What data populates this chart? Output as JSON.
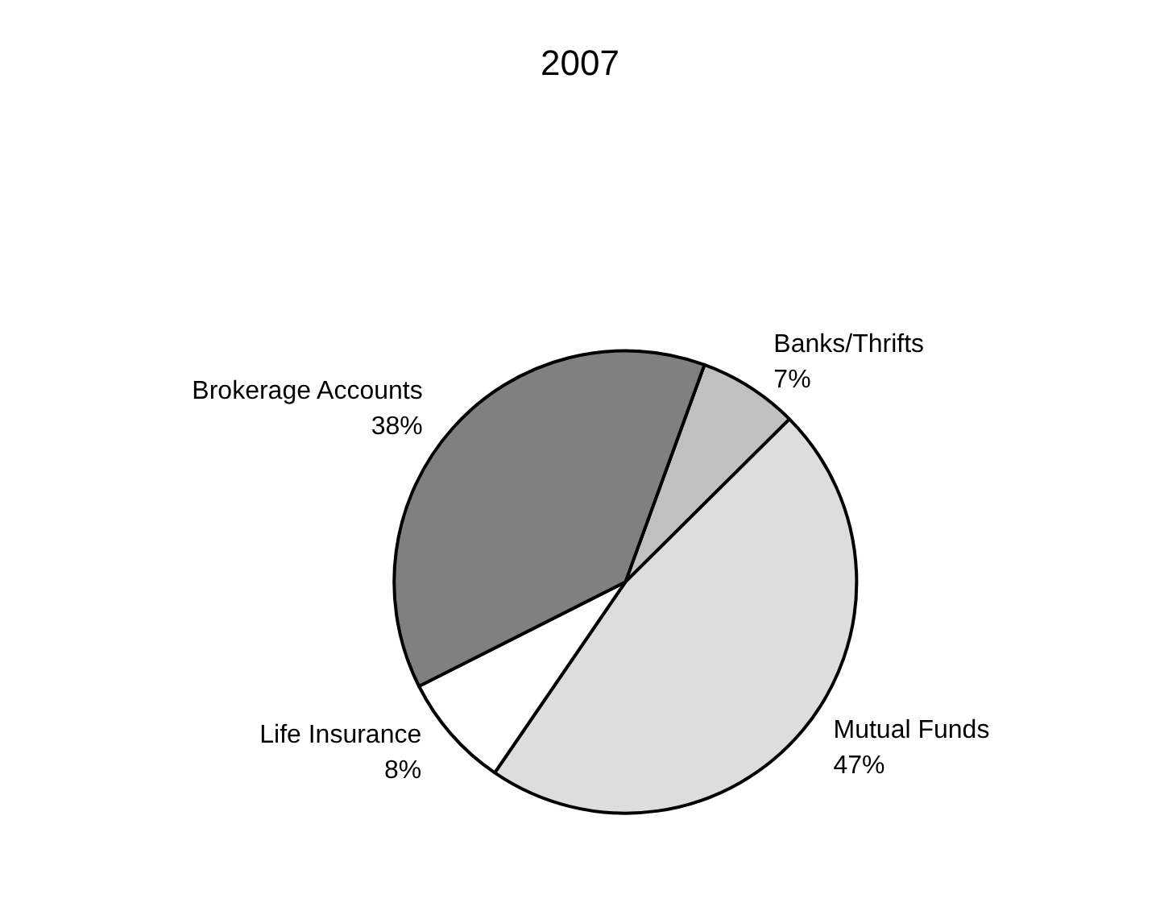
{
  "chart_data": {
    "type": "pie",
    "title": "2007",
    "categories": [
      "Banks/Thrifts",
      "Mutual Funds",
      "Life Insurance",
      "Brokerage Accounts"
    ],
    "values": [
      7,
      47,
      8,
      38
    ],
    "colors": [
      "#c0c0c0",
      "#dddddd",
      "#ffffff",
      "#808080"
    ],
    "value_labels": [
      "7%",
      "47%",
      "8%",
      "38%"
    ],
    "legend": false
  }
}
